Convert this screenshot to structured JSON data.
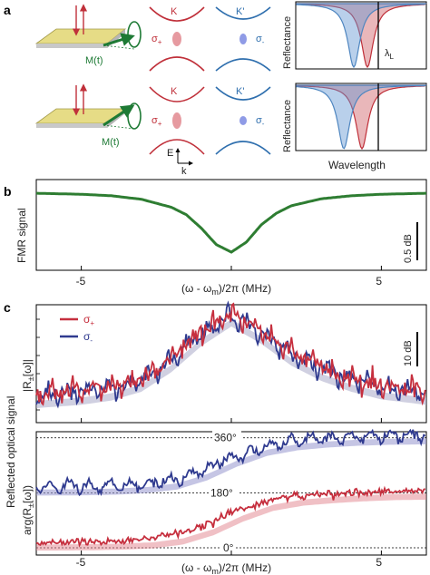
{
  "panel_a": {
    "letter": "a",
    "magnetization_label": "M(t)",
    "valley_K": "K",
    "valley_Kp": "K'",
    "sigma_plus": "σ",
    "sigma_plus_sub": "+",
    "sigma_minus": "σ",
    "sigma_minus_sub": "-",
    "axis_E": "E",
    "axis_k": "k",
    "reflectance_label": "Reflectance",
    "lambda_label": "λ",
    "lambda_sub": "L",
    "wavelength_label": "Wavelength",
    "colors": {
      "red": "#c0303a",
      "blue": "#2f6fae",
      "green": "#1e7a35",
      "gold": "#d8c95a"
    }
  },
  "panel_b": {
    "letter": "b",
    "ylabel": "FMR signal",
    "scale_bar_label": "0.5 dB",
    "xlabel": "(ω - ω",
    "xlabel_sub": "m",
    "xlabel_end": ")/2π (MHz)",
    "line_color": "#2e7d32"
  },
  "panel_c": {
    "letter": "c",
    "legend": [
      {
        "symbol": "σ",
        "sub": "+",
        "color": "#c62f3e"
      },
      {
        "symbol": "σ",
        "sub": "-",
        "color": "#2f3a8f"
      }
    ],
    "scale_bar_label": "10 dB",
    "shared_ylabel": "Reflected optical signal",
    "upper_ylabel": "|R",
    "upper_ylabel_sub": "±",
    "upper_ylabel_end": "[ω]|",
    "lower_ylabel": "arg(R",
    "lower_ylabel_sub": "±",
    "lower_ylabel_end": "[ω])",
    "phase_labels": [
      "360°",
      "180°",
      "0°"
    ],
    "xlabel": "(ω - ω",
    "xlabel_sub": "m",
    "xlabel_end": ")/2π (MHz)"
  },
  "chart_data": [
    {
      "type": "line",
      "panel": "b",
      "x": [
        -6.5,
        -5,
        -4,
        -3,
        -2,
        -1.5,
        -1,
        -0.5,
        0,
        0.5,
        1,
        1.5,
        2,
        3,
        4,
        5,
        6.5
      ],
      "series": [
        {
          "values": [
            0.02,
            0.04,
            0.07,
            0.14,
            0.3,
            0.45,
            0.72,
            1.05,
            1.2,
            1.0,
            0.65,
            0.42,
            0.27,
            0.13,
            0.07,
            0.04,
            0.02
          ]
        }
      ],
      "xlim": [
        -6.5,
        6.5
      ],
      "x_ticks": [
        -5,
        0,
        5
      ],
      "x_tick_labels": [
        "-5",
        "",
        "5"
      ]
    },
    {
      "type": "line",
      "panel": "c-upper",
      "x": [
        -6.5,
        -5,
        -4,
        -3,
        -2,
        -1,
        0,
        1,
        2,
        3,
        4,
        5,
        6.5
      ],
      "series": [
        {
          "name": "σ+",
          "values": [
            0.05,
            0.08,
            0.12,
            0.2,
            0.38,
            0.62,
            0.8,
            0.64,
            0.44,
            0.3,
            0.2,
            0.13,
            0.08
          ]
        },
        {
          "name": "σ-",
          "values": [
            0.05,
            0.08,
            0.12,
            0.2,
            0.38,
            0.62,
            0.8,
            0.64,
            0.44,
            0.3,
            0.2,
            0.13,
            0.08
          ]
        }
      ],
      "xlim": [
        -6.5,
        6.5
      ],
      "x_ticks": [
        -5,
        0,
        5
      ]
    },
    {
      "type": "line",
      "panel": "c-lower",
      "x": [
        -6.5,
        -5,
        -4,
        -3,
        -2,
        -1,
        0,
        1,
        2,
        3,
        4,
        5,
        6.5
      ],
      "series": [
        {
          "name": "σ+",
          "values": [
            5,
            6,
            8,
            12,
            25,
            55,
            100,
            135,
            152,
            160,
            166,
            170,
            172
          ]
        },
        {
          "name": "σ-",
          "values": [
            185,
            186,
            188,
            193,
            205,
            235,
            280,
            315,
            333,
            342,
            348,
            351,
            353
          ]
        }
      ],
      "ylim": [
        0,
        380
      ],
      "y_ticks": [
        0,
        180,
        360
      ],
      "y_tick_labels": [
        "0°",
        "180°",
        "360°"
      ],
      "xlim": [
        -6.5,
        6.5
      ],
      "x_ticks": [
        -5,
        0,
        5
      ],
      "x_tick_labels": [
        "-5",
        "",
        "5"
      ]
    }
  ]
}
